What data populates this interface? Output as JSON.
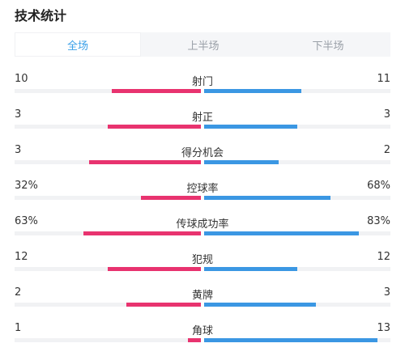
{
  "title": "技术统计",
  "tabs": [
    {
      "label": "全场",
      "active": true
    },
    {
      "label": "上半场",
      "active": false
    },
    {
      "label": "下半场",
      "active": false
    }
  ],
  "colors": {
    "home": "#e8336f",
    "away": "#3b97e3",
    "active_tab": "#3aa0e8"
  },
  "stats": [
    {
      "label": "射门",
      "home": "10",
      "away": "11",
      "home_ratio": 0.48,
      "away_ratio": 0.52
    },
    {
      "label": "射正",
      "home": "3",
      "away": "3",
      "home_ratio": 0.5,
      "away_ratio": 0.5
    },
    {
      "label": "得分机会",
      "home": "3",
      "away": "2",
      "home_ratio": 0.6,
      "away_ratio": 0.4
    },
    {
      "label": "控球率",
      "home": "32%",
      "away": "68%",
      "home_ratio": 0.32,
      "away_ratio": 0.68
    },
    {
      "label": "传球成功率",
      "home": "63%",
      "away": "83%",
      "home_ratio": 0.63,
      "away_ratio": 0.83
    },
    {
      "label": "犯规",
      "home": "12",
      "away": "12",
      "home_ratio": 0.5,
      "away_ratio": 0.5
    },
    {
      "label": "黄牌",
      "home": "2",
      "away": "3",
      "home_ratio": 0.4,
      "away_ratio": 0.6
    },
    {
      "label": "角球",
      "home": "1",
      "away": "13",
      "home_ratio": 0.07,
      "away_ratio": 0.93
    }
  ]
}
